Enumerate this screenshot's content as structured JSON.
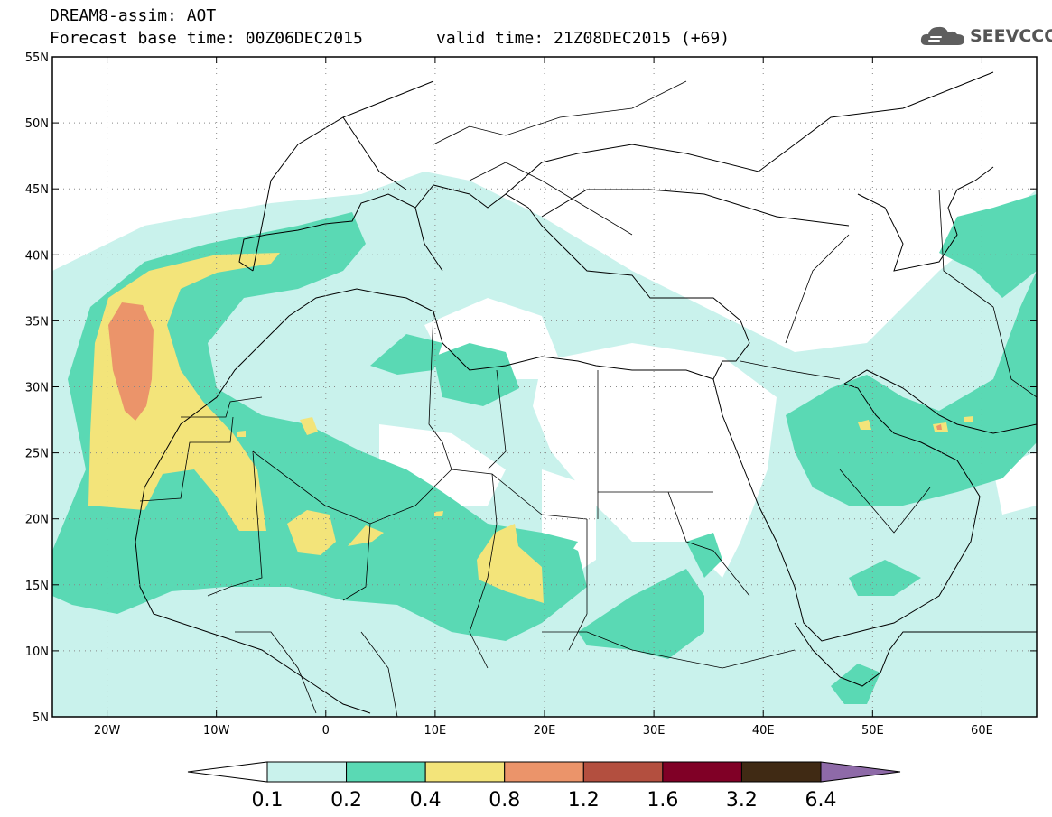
{
  "header": {
    "line1": "DREAM8-assim: AOT",
    "base_time": "Forecast base time: 00Z06DEC2015",
    "valid_time": "valid time: 21Z08DEC2015 (+69)"
  },
  "logo": {
    "text": "SEEVCCC",
    "icon": "cloud-logo-icon"
  },
  "map": {
    "lon_range": [
      -25,
      65
    ],
    "lat_range": [
      5,
      55
    ],
    "lat_ticks": [
      "5N",
      "10N",
      "15N",
      "20N",
      "25N",
      "30N",
      "35N",
      "40N",
      "45N",
      "50N",
      "55N"
    ],
    "lon_ticks": [
      "20W",
      "10W",
      "0",
      "10E",
      "20E",
      "30E",
      "40E",
      "50E",
      "60E"
    ],
    "grid": "dotted"
  },
  "colorbar": {
    "labels": [
      "0.1",
      "0.2",
      "0.4",
      "0.8",
      "1.2",
      "1.6",
      "3.2",
      "6.4"
    ],
    "colors": [
      "#ffffff",
      "#c9f2ec",
      "#5ad9b4",
      "#f3e47a",
      "#eb946a",
      "#b34f3f",
      "#800026",
      "#402a14",
      "#8e6aa8"
    ]
  }
}
